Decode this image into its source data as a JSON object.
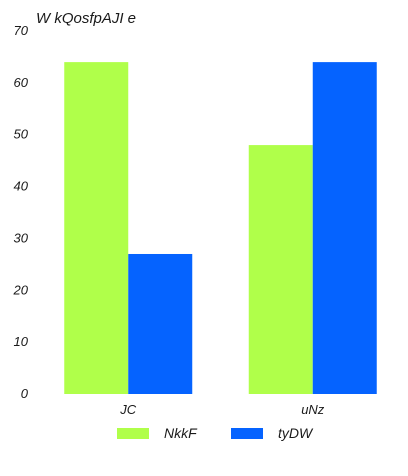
{
  "chart_data": {
    "type": "bar",
    "title": "W kQosfpAJI e",
    "xlabel": "",
    "ylabel": "",
    "categories": [
      "JC",
      "uNz"
    ],
    "series": [
      {
        "name": "NkkF",
        "color": "#b0ff4a",
        "values": [
          64,
          48
        ]
      },
      {
        "name": "tyDW",
        "color": "#0563ff",
        "values": [
          27,
          64
        ]
      }
    ],
    "ylim": [
      0,
      70
    ],
    "yticks": [
      0,
      10,
      20,
      30,
      40,
      50,
      60,
      70
    ],
    "grid": false,
    "legend_position": "bottom"
  }
}
